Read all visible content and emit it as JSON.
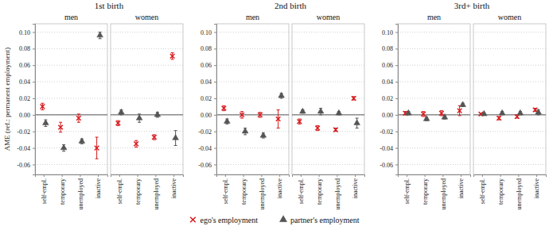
{
  "chart_data": {
    "type": "scatter",
    "ylabel": "AME (ref.: permanent employment)",
    "categories": [
      "self-empl.",
      "temporary",
      "unemployed",
      "inactive"
    ],
    "ylim": [
      -0.072,
      0.11
    ],
    "yticks": [
      {
        "value": -0.06,
        "label": "-0.06"
      },
      {
        "value": -0.04,
        "label": "-0.04"
      },
      {
        "value": -0.02,
        "label": "-0.02"
      },
      {
        "value": 0,
        "label": "0.00"
      },
      {
        "value": 0.02,
        "label": "0.02"
      },
      {
        "value": 0.04,
        "label": "0.04"
      },
      {
        "value": 0.06,
        "label": "0.06"
      },
      {
        "value": 0.08,
        "label": "0.08"
      },
      {
        "value": 0.1,
        "label": "0.10"
      }
    ],
    "grid": true,
    "legend": "bottom",
    "series": [
      {
        "name": "ego's employment",
        "color": "#d7191c",
        "marker": "x"
      },
      {
        "name": "partner's employment",
        "color": "#555555",
        "marker": "triangle"
      }
    ],
    "panels": [
      {
        "title": "1st birth",
        "groups": [
          {
            "subtitle": "men",
            "series": [
              {
                "values": [
                  0.01,
                  -0.015,
                  -0.004,
                  -0.04
                ],
                "errors": [
                  0.004,
                  0.006,
                  0.005,
                  0.013
                ]
              },
              {
                "values": [
                  -0.01,
                  -0.04,
                  -0.032,
                  0.096
                ],
                "errors": [
                  0.004,
                  0.004,
                  0.003,
                  0.004
                ]
              }
            ]
          },
          {
            "subtitle": "women",
            "series": [
              {
                "values": [
                  -0.01,
                  -0.035,
                  -0.027,
                  0.071
                ],
                "errors": [
                  0.003,
                  0.004,
                  0.003,
                  0.004
                ]
              },
              {
                "values": [
                  0.003,
                  -0.004,
                  0.0,
                  -0.028
                ],
                "errors": [
                  0.003,
                  0.005,
                  0.003,
                  0.009
                ]
              }
            ]
          }
        ]
      },
      {
        "title": "2nd birth",
        "groups": [
          {
            "subtitle": "men",
            "series": [
              {
                "values": [
                  0.008,
                  0.0,
                  0.0,
                  -0.005
                ],
                "errors": [
                  0.003,
                  0.004,
                  0.003,
                  0.011
                ]
              },
              {
                "values": [
                  -0.008,
                  -0.02,
                  -0.025,
                  0.023
                ],
                "errors": [
                  0.003,
                  0.004,
                  0.003,
                  0.003
                ]
              }
            ]
          },
          {
            "subtitle": "women",
            "series": [
              {
                "values": [
                  -0.008,
                  -0.016,
                  -0.018,
                  0.02
                ],
                "errors": [
                  0.003,
                  0.003,
                  0.002,
                  0.002
                ]
              },
              {
                "values": [
                  0.004,
                  0.004,
                  0.002,
                  -0.01
                ],
                "errors": [
                  0.002,
                  0.004,
                  0.002,
                  0.006
                ]
              }
            ]
          }
        ]
      },
      {
        "title": "3rd+ birth",
        "groups": [
          {
            "subtitle": "men",
            "series": [
              {
                "values": [
                  0.002,
                  0.001,
                  0.002,
                  0.005
                ],
                "errors": [
                  0.002,
                  0.003,
                  0.003,
                  0.006
                ]
              },
              {
                "values": [
                  0.002,
                  -0.005,
                  -0.003,
                  0.012
                ],
                "errors": [
                  0.002,
                  0.002,
                  0.002,
                  0.002
                ]
              }
            ]
          },
          {
            "subtitle": "women",
            "series": [
              {
                "values": [
                  0.001,
                  -0.004,
                  -0.002,
                  0.006
                ],
                "errors": [
                  0.001,
                  0.002,
                  0.002,
                  0.002
                ]
              },
              {
                "values": [
                  0.001,
                  0.002,
                  0.002,
                  0.003
                ],
                "errors": [
                  0.001,
                  0.002,
                  0.002,
                  0.003
                ]
              }
            ]
          }
        ]
      }
    ]
  }
}
